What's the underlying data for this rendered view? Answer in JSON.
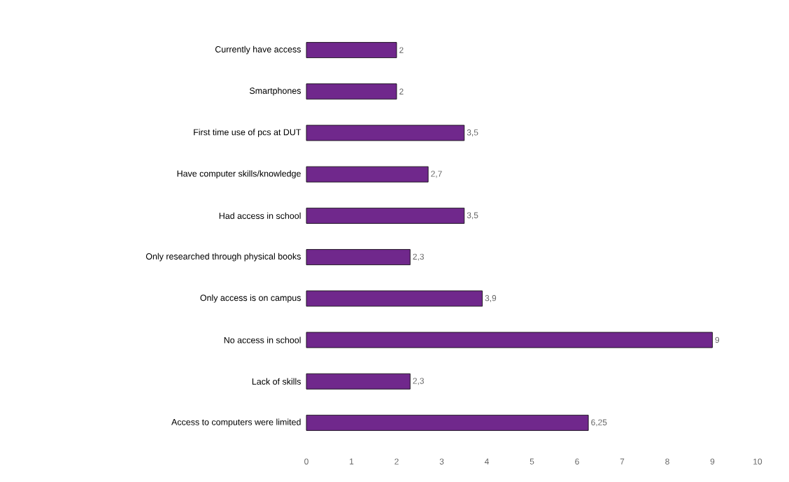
{
  "chart_data": {
    "type": "bar",
    "orientation": "horizontal",
    "categories": [
      "Currently have access",
      "Smartphones",
      "First time use of pcs at DUT",
      "Have computer skills/knowledge",
      "Had access in school",
      "Only researched through physical books",
      "Only access is on campus",
      "No access in school",
      "Lack of skills",
      "Access to computers were limited"
    ],
    "values": [
      2,
      2,
      3.5,
      2.7,
      3.5,
      2.3,
      3.9,
      9,
      2.3,
      6.25
    ],
    "value_labels": [
      "2",
      "2",
      "3,5",
      "2,7",
      "3,5",
      "2,3",
      "3,9",
      "9",
      "2,3",
      "6,25"
    ],
    "color": "#70288c",
    "xlim": [
      0,
      10
    ],
    "xticks": [
      0,
      1,
      2,
      3,
      4,
      5,
      6,
      7,
      8,
      9,
      10
    ],
    "grid": false
  }
}
